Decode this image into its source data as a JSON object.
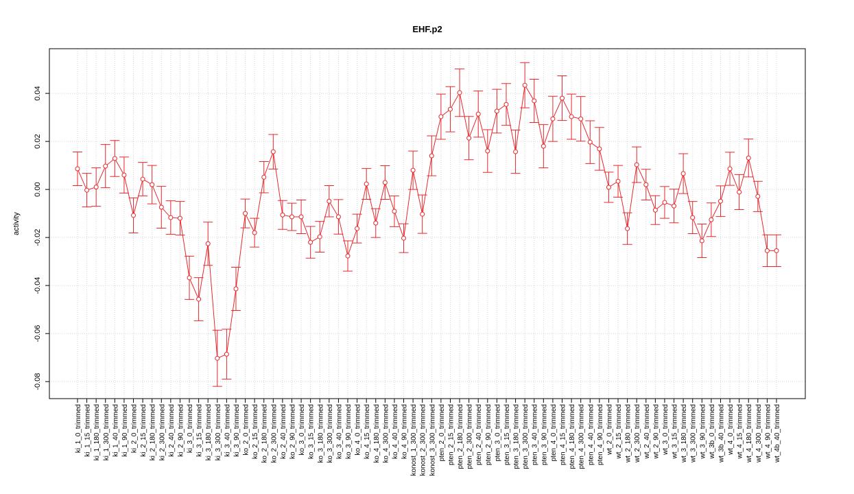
{
  "chart_data": {
    "type": "line",
    "title": "EHF.p2",
    "y_label": "activity",
    "color": "#e8262a",
    "grid": true,
    "categories": [
      "ki_1_0_trimmed",
      "ki_1_15_trimmed",
      "ki_1_180_trimmed",
      "ki_1_300_trimmed",
      "ki_1_40_trimmed",
      "ki_1_90_trimmed",
      "ki_2_0_trimmed",
      "ki_2_15_trimmed",
      "ki_2_180_trimmed",
      "ki_2_300_trimmed",
      "ki_2_40_trimmed",
      "ki_2_90_trimmed",
      "ki_3_0_trimmed",
      "ki_3_15_trimmed",
      "ki_3_180_trimmed",
      "ki_3_300_trimmed",
      "ki_3_40_trimmed",
      "ki_3_90_trimmed",
      "ko_2_0_trimmed",
      "ko_2_15_trimmed",
      "ko_2_180_trimmed",
      "ko_2_300_trimmed",
      "ko_2_40_trimmed",
      "ko_2_90_trimmed",
      "ko_3_0_trimmed",
      "ko_3_15_trimmed",
      "ko_3_180_trimmed",
      "ko_3_300_trimmed",
      "ko_3_40_trimmed",
      "ko_3_90_trimmed",
      "ko_4_0_trimmed",
      "ko_4_15_trimmed",
      "ko_4_180_trimmed",
      "ko_4_300_trimmed",
      "ko_4_40_trimmed",
      "ko_4_90_trimmed",
      "konost_1_300_trimmed",
      "konost_2_300_trimmed",
      "konost_3_300_trimmed",
      "pten_2_0_trimmed",
      "pten_2_15_trimmed",
      "pten_2_180_trimmed",
      "pten_2_300_trimmed",
      "pten_2_40_trimmed",
      "pten_2_90_trimmed",
      "pten_3_0_trimmed",
      "pten_3_15_trimmed",
      "pten_3_180_trimmed",
      "pten_3_300_trimmed",
      "pten_3_40_trimmed",
      "pten_3_90_trimmed",
      "pten_4_0_trimmed",
      "pten_4_15_trimmed",
      "pten_4_180_trimmed",
      "pten_4_300_trimmed",
      "pten_4_40_trimmed",
      "pten_4_90_trimmed",
      "wt_2_0_trimmed",
      "wt_2_15_trimmed",
      "wt_2_180_trimmed",
      "wt_2_300_trimmed",
      "wt_2_40_trimmed",
      "wt_2_90_trimmed",
      "wt_3_0_trimmed",
      "wt_3_15_trimmed",
      "wt_3_180_trimmed",
      "wt_3_300_trimmed",
      "wt_3_90_trimmed",
      "wt_3b_0_trimmed",
      "wt_3b_40_trimmed",
      "wt_4_0_trimmed",
      "wt_4_15_trimmed",
      "wt_4_180_trimmed",
      "wt_4_300_trimmed",
      "wt_4_90_trimmed",
      "wt_4b_40_trimmed"
    ],
    "values": [
      0.0086,
      -0.0003,
      0.001,
      0.0097,
      0.0129,
      0.006,
      -0.0108,
      0.0043,
      0.002,
      -0.0074,
      -0.0117,
      -0.012,
      -0.0368,
      -0.0457,
      -0.0226,
      -0.0703,
      -0.0686,
      -0.0414,
      -0.01,
      -0.018,
      0.0051,
      0.0157,
      -0.0106,
      -0.0114,
      -0.0114,
      -0.022,
      -0.0197,
      -0.0049,
      -0.0114,
      -0.0277,
      -0.0163,
      0.0023,
      -0.014,
      0.0029,
      -0.0091,
      -0.0203,
      0.008,
      -0.0103,
      0.014,
      0.0303,
      0.0334,
      0.0403,
      0.0214,
      0.0314,
      0.016,
      0.0326,
      0.0354,
      0.0157,
      0.0434,
      0.0369,
      0.018,
      0.0294,
      0.038,
      0.0303,
      0.0294,
      0.0197,
      0.0169,
      0.0009,
      0.0034,
      -0.0163,
      0.0103,
      0.002,
      -0.0086,
      -0.0054,
      -0.0069,
      0.0066,
      -0.0117,
      -0.0214,
      -0.0126,
      -0.0049,
      0.0086,
      -0.0011,
      0.0131,
      -0.0029,
      -0.0255,
      -0.0255
    ],
    "errors": [
      0.007,
      0.007,
      0.008,
      0.009,
      0.0075,
      0.0075,
      0.0073,
      0.007,
      0.008,
      0.0087,
      0.007,
      0.007,
      0.009,
      0.009,
      0.009,
      0.0117,
      0.0104,
      0.009,
      0.006,
      0.006,
      0.0065,
      0.0072,
      0.006,
      0.0057,
      0.007,
      0.0066,
      0.0064,
      0.0065,
      0.0072,
      0.0063,
      0.006,
      0.0064,
      0.006,
      0.007,
      0.0064,
      0.006,
      0.008,
      0.008,
      0.0083,
      0.0094,
      0.0094,
      0.0099,
      0.009,
      0.0096,
      0.0089,
      0.0091,
      0.0087,
      0.009,
      0.0094,
      0.009,
      0.009,
      0.0094,
      0.0093,
      0.0094,
      0.0093,
      0.0089,
      0.0089,
      0.0063,
      0.0066,
      0.0066,
      0.0074,
      0.0064,
      0.006,
      0.0066,
      0.007,
      0.0083,
      0.0067,
      0.007,
      0.007,
      0.0064,
      0.0069,
      0.0073,
      0.0079,
      0.0063,
      0.0066,
      0.0066
    ],
    "ylim": [
      -0.0871,
      0.0586
    ],
    "yticks": [
      -0.08,
      -0.06,
      -0.04,
      -0.02,
      {
        "value": 0,
        "label": "0.00"
      },
      0.02,
      0.04
    ]
  }
}
